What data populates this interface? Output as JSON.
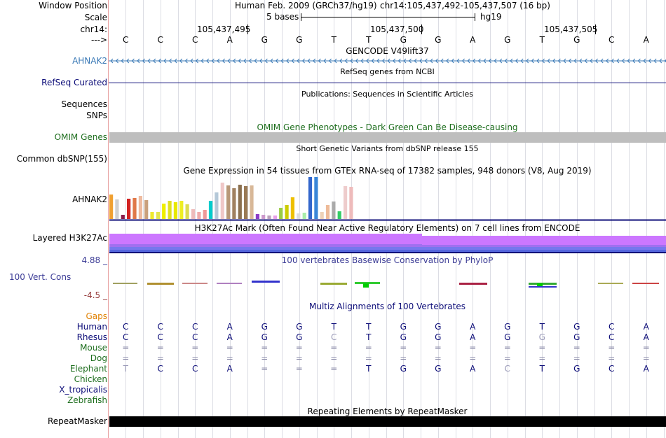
{
  "header": {
    "window_position_label": "Window Position",
    "title": "Human Feb. 2009 (GRCh37/hg19)",
    "position": "chr14:105,437,492-105,437,507 (16 bp)",
    "scale_label": "Scale",
    "scale_text": "5 bases",
    "assembly": "hg19",
    "chrom_label": "chr14:",
    "ticks": [
      "105,437,495",
      "105,437,500",
      "105,437,505"
    ],
    "strand_label": "--->",
    "bases": [
      "C",
      "C",
      "C",
      "A",
      "G",
      "G",
      "T",
      "T",
      "G",
      "G",
      "A",
      "G",
      "T",
      "G",
      "C",
      "A"
    ]
  },
  "tracks": {
    "gencode": {
      "title": "GENCODE V49lift37",
      "label": "AHNAK2",
      "color": "#3a79b6"
    },
    "refseq": {
      "title": "RefSeq genes from NCBI",
      "label": "RefSeq Curated",
      "color": "#0c0c78"
    },
    "publications": {
      "title": "Publications: Sequences in Scientific Articles",
      "label1": "Sequences",
      "label2": "SNPs"
    },
    "omim": {
      "title": "OMIM Gene Phenotypes - Dark Green Can Be Disease-causing",
      "label": "OMIM Genes",
      "color": "#1e6e1e"
    },
    "dbsnp": {
      "title": "Short Genetic Variants from dbSNP release 155",
      "label": "Common dbSNP(155)"
    },
    "gtex": {
      "title": "Gene Expression in 54 tissues from GTEx RNA-seq of 17382 samples, 948 donors (V8, Aug 2019)",
      "label": "AHNAK2",
      "colors": [
        "#f0a030",
        "#d0d0d0",
        "#8b1a4a",
        "#d22222",
        "#e07848",
        "#eebba0",
        "#c9a07c",
        "#eee82e",
        "#e4e44c",
        "#eeee00",
        "#e0e020",
        "#e8e800",
        "#eeee22",
        "#dcdc50",
        "#eebbbb",
        "#eeaaaa",
        "#ee9999",
        "#00cccc",
        "#b4c8d8",
        "#f0c8c8",
        "#b89878",
        "#a08060",
        "#8b7050",
        "#9a7a56",
        "#d8b898",
        "#8c3cc8",
        "#cc99cc",
        "#bba0bb",
        "#e8a0e8",
        "#99cc44",
        "#cccc00",
        "#eec000",
        "#dddddd",
        "#aaeeaa",
        "#3366cc",
        "#3a86d8",
        "#eed2b8",
        "#eebb99",
        "#aaaaaa",
        "#33cc66",
        "#eecccc",
        "#eebbbb"
      ],
      "values": [
        35,
        28,
        6,
        29,
        30,
        33,
        27,
        10,
        10,
        22,
        26,
        24,
        26,
        21,
        14,
        10,
        13,
        26,
        38,
        52,
        48,
        44,
        49,
        47,
        48,
        7,
        6,
        5,
        5,
        16,
        20,
        31,
        8,
        9,
        60,
        60,
        10,
        20,
        25,
        11,
        47,
        46
      ]
    },
    "h3k27ac": {
      "title": "H3K27Ac Mark (Often Found Near Active Regulatory Elements) on 7 cell lines from ENCODE",
      "label": "Layered H3K27Ac",
      "color": "#cc77ff"
    },
    "conservation": {
      "title": "100 vertebrates Basewise Conservation by PhyloP",
      "label": "100 Vert. Cons",
      "max": "4.88 _",
      "min": "-4.5 _",
      "label_color": "#3c3c96",
      "min_color": "#963c3c"
    },
    "multiz": {
      "title": "Multiz Alignments of 100 Vertebrates",
      "gaps_label": "Gaps",
      "species": [
        {
          "name": "Human",
          "color": "#0c0c78",
          "bases": [
            "C",
            "C",
            "C",
            "A",
            "G",
            "G",
            "T",
            "T",
            "G",
            "G",
            "A",
            "G",
            "T",
            "G",
            "C",
            "A"
          ]
        },
        {
          "name": "Rhesus",
          "color": "#0c0c78",
          "bases": [
            "C",
            "C",
            "C",
            "A",
            "G",
            "G",
            "C",
            "T",
            "G",
            "G",
            "A",
            "G",
            "G",
            "G",
            "C",
            "A"
          ]
        },
        {
          "name": "Mouse",
          "color": "#1e6e1e",
          "bases": [
            "=",
            "=",
            "=",
            "=",
            "=",
            "=",
            "=",
            "=",
            "=",
            "=",
            "=",
            "=",
            "=",
            "=",
            "=",
            "="
          ]
        },
        {
          "name": "Dog",
          "color": "#1e6e1e",
          "bases": [
            "=",
            "=",
            "=",
            "=",
            "=",
            "=",
            "=",
            "=",
            "=",
            "=",
            "=",
            "=",
            "=",
            "=",
            "=",
            "="
          ]
        },
        {
          "name": "Elephant",
          "color": "#1e6e1e",
          "bases": [
            "T",
            "C",
            "C",
            "A",
            "=",
            "=",
            "=",
            "T",
            "G",
            "G",
            "A",
            "C",
            "T",
            "G",
            "C",
            "A"
          ]
        },
        {
          "name": "Chicken",
          "color": "#1e6e1e",
          "bases": []
        },
        {
          "name": "X_tropicalis",
          "color": "#0c0c78",
          "bases": []
        },
        {
          "name": "Zebrafish",
          "color": "#1e6e1e",
          "bases": []
        }
      ]
    },
    "repeatmasker": {
      "title": "Repeating Elements by RepeatMasker",
      "label": "RepeatMasker"
    }
  }
}
